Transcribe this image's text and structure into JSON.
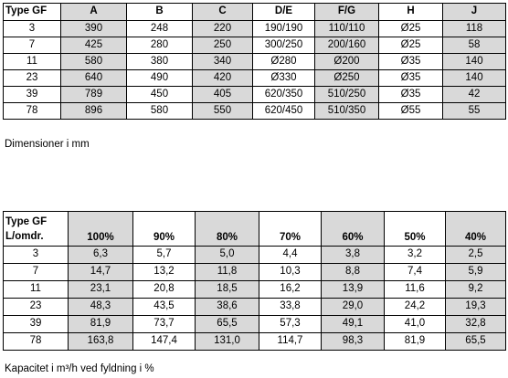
{
  "dimension_table": {
    "headers": [
      "Type GF",
      "A",
      "B",
      "C",
      "D/E",
      "F/G",
      "H",
      "J"
    ],
    "rows": [
      [
        "3",
        "390",
        "248",
        "220",
        "190/190",
        "110/110",
        "Ø25",
        "118"
      ],
      [
        "7",
        "425",
        "280",
        "250",
        "300/250",
        "200/160",
        "Ø25",
        "58"
      ],
      [
        "11",
        "580",
        "380",
        "340",
        "Ø280",
        "Ø200",
        "Ø35",
        "140"
      ],
      [
        "23",
        "640",
        "490",
        "420",
        "Ø330",
        "Ø250",
        "Ø35",
        "140"
      ],
      [
        "39",
        "789",
        "450",
        "405",
        "620/350",
        "510/250",
        "Ø35",
        "42"
      ],
      [
        "78",
        "896",
        "580",
        "550",
        "620/450",
        "510/350",
        "Ø55",
        "55"
      ]
    ],
    "caption": "Dimensioner i mm"
  },
  "capacity_table": {
    "header_line1": "Type GF",
    "header_line2": "L/omdr.",
    "headers": [
      "100%",
      "90%",
      "80%",
      "70%",
      "60%",
      "50%",
      "40%"
    ],
    "rows": [
      [
        "3",
        "6,3",
        "5,7",
        "5,0",
        "4,4",
        "3,8",
        "3,2",
        "2,5"
      ],
      [
        "7",
        "14,7",
        "13,2",
        "11,8",
        "10,3",
        "8,8",
        "7,4",
        "5,9"
      ],
      [
        "11",
        "23,1",
        "20,8",
        "18,5",
        "16,2",
        "13,9",
        "11,6",
        "9,2"
      ],
      [
        "23",
        "48,3",
        "43,5",
        "38,6",
        "33,8",
        "29,0",
        "24,2",
        "19,3"
      ],
      [
        "39",
        "81,9",
        "73,7",
        "65,5",
        "57,3",
        "49,1",
        "41,0",
        "32,8"
      ],
      [
        "78",
        "163,8",
        "147,4",
        "131,0",
        "114,7",
        "98,3",
        "81,9",
        "65,5"
      ]
    ],
    "caption": "Kapacitet i m³/h ved fyldning i %"
  },
  "colors": {
    "shaded_column": "#d9d9d9",
    "border": "#000000"
  }
}
